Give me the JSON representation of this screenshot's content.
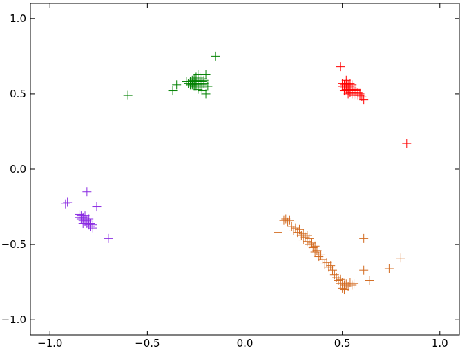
{
  "chart_data": {
    "type": "scatter",
    "title": "",
    "xlabel": "",
    "ylabel": "",
    "xlim": [
      -1.1,
      1.1
    ],
    "ylim": [
      -1.1,
      1.1
    ],
    "grid": false,
    "marker": "plus",
    "x_ticks": [
      -1.0,
      -0.5,
      0.0,
      0.5,
      1.0
    ],
    "x_tick_labels": [
      "−1.0",
      "−0.5",
      "0.0",
      "0.5",
      "1.0"
    ],
    "y_ticks": [
      1.0,
      0.5,
      0.0,
      -0.5,
      -1.0
    ],
    "y_tick_labels": [
      "1.0",
      "0.5",
      "0.0",
      "−0.5",
      "−1.0"
    ],
    "series": [
      {
        "color": "#008000",
        "points": [
          [
            -0.6,
            0.49
          ],
          [
            -0.15,
            0.75
          ],
          [
            -0.37,
            0.52
          ],
          [
            -0.35,
            0.56
          ],
          [
            -0.2,
            0.63
          ],
          [
            -0.2,
            0.5
          ],
          [
            -0.24,
            0.63
          ],
          [
            -0.22,
            0.52
          ],
          [
            -0.24,
            0.53
          ],
          [
            -0.19,
            0.55
          ],
          [
            -0.3,
            0.58
          ],
          [
            -0.29,
            0.57
          ],
          [
            -0.28,
            0.58
          ],
          [
            -0.27,
            0.57
          ],
          [
            -0.27,
            0.59
          ],
          [
            -0.26,
            0.56
          ],
          [
            -0.26,
            0.58
          ],
          [
            -0.26,
            0.6
          ],
          [
            -0.25,
            0.57
          ],
          [
            -0.25,
            0.59
          ],
          [
            -0.25,
            0.55
          ],
          [
            -0.24,
            0.58
          ],
          [
            -0.24,
            0.56
          ],
          [
            -0.24,
            0.6
          ],
          [
            -0.23,
            0.57
          ],
          [
            -0.23,
            0.59
          ],
          [
            -0.23,
            0.55
          ],
          [
            -0.22,
            0.58
          ],
          [
            -0.22,
            0.56
          ],
          [
            -0.22,
            0.6
          ],
          [
            -0.21,
            0.57
          ],
          [
            -0.21,
            0.59
          ],
          [
            -0.25,
            0.61
          ],
          [
            -0.27,
            0.56
          ],
          [
            -0.23,
            0.61
          ],
          [
            -0.28,
            0.56
          ],
          [
            -0.26,
            0.55
          ],
          [
            -0.24,
            0.54
          ],
          [
            -0.22,
            0.54
          ],
          [
            -0.25,
            0.58
          ]
        ]
      },
      {
        "color": "#ff0000",
        "points": [
          [
            0.49,
            0.68
          ],
          [
            0.83,
            0.17
          ],
          [
            0.5,
            0.55
          ],
          [
            0.51,
            0.54
          ],
          [
            0.51,
            0.56
          ],
          [
            0.52,
            0.55
          ],
          [
            0.52,
            0.57
          ],
          [
            0.52,
            0.53
          ],
          [
            0.53,
            0.54
          ],
          [
            0.53,
            0.56
          ],
          [
            0.53,
            0.52
          ],
          [
            0.54,
            0.55
          ],
          [
            0.54,
            0.53
          ],
          [
            0.54,
            0.51
          ],
          [
            0.55,
            0.54
          ],
          [
            0.55,
            0.52
          ],
          [
            0.55,
            0.5
          ],
          [
            0.56,
            0.53
          ],
          [
            0.56,
            0.51
          ],
          [
            0.57,
            0.52
          ],
          [
            0.57,
            0.5
          ],
          [
            0.58,
            0.51
          ],
          [
            0.58,
            0.49
          ],
          [
            0.59,
            0.49
          ],
          [
            0.6,
            0.48
          ],
          [
            0.61,
            0.46
          ],
          [
            0.52,
            0.59
          ],
          [
            0.54,
            0.57
          ],
          [
            0.55,
            0.56
          ],
          [
            0.57,
            0.53
          ],
          [
            0.59,
            0.5
          ],
          [
            0.5,
            0.57
          ],
          [
            0.53,
            0.5
          ],
          [
            0.56,
            0.49
          ],
          [
            0.51,
            0.52
          ]
        ]
      },
      {
        "color": "#8a2be2",
        "points": [
          [
            -0.91,
            -0.22
          ],
          [
            -0.92,
            -0.23
          ],
          [
            -0.81,
            -0.15
          ],
          [
            -0.76,
            -0.25
          ],
          [
            -0.7,
            -0.46
          ],
          [
            -0.78,
            -0.39
          ],
          [
            -0.85,
            -0.3
          ],
          [
            -0.84,
            -0.31
          ],
          [
            -0.84,
            -0.33
          ],
          [
            -0.83,
            -0.32
          ],
          [
            -0.83,
            -0.34
          ],
          [
            -0.82,
            -0.33
          ],
          [
            -0.82,
            -0.35
          ],
          [
            -0.82,
            -0.31
          ],
          [
            -0.81,
            -0.34
          ],
          [
            -0.81,
            -0.36
          ],
          [
            -0.8,
            -0.35
          ],
          [
            -0.8,
            -0.37
          ],
          [
            -0.79,
            -0.36
          ],
          [
            -0.79,
            -0.38
          ],
          [
            -0.83,
            -0.36
          ],
          [
            -0.85,
            -0.32
          ],
          [
            -0.78,
            -0.37
          ],
          [
            -0.8,
            -0.33
          ]
        ]
      },
      {
        "color": "#d2691e",
        "points": [
          [
            0.17,
            -0.42
          ],
          [
            0.21,
            -0.33
          ],
          [
            0.22,
            -0.35
          ],
          [
            0.23,
            -0.34
          ],
          [
            0.24,
            -0.38
          ],
          [
            0.25,
            -0.41
          ],
          [
            0.26,
            -0.39
          ],
          [
            0.27,
            -0.42
          ],
          [
            0.28,
            -0.4
          ],
          [
            0.29,
            -0.44
          ],
          [
            0.3,
            -0.43
          ],
          [
            0.3,
            -0.47
          ],
          [
            0.31,
            -0.45
          ],
          [
            0.32,
            -0.48
          ],
          [
            0.33,
            -0.46
          ],
          [
            0.33,
            -0.5
          ],
          [
            0.34,
            -0.49
          ],
          [
            0.35,
            -0.52
          ],
          [
            0.36,
            -0.55
          ],
          [
            0.37,
            -0.54
          ],
          [
            0.38,
            -0.58
          ],
          [
            0.39,
            -0.57
          ],
          [
            0.4,
            -0.6
          ],
          [
            0.41,
            -0.63
          ],
          [
            0.42,
            -0.62
          ],
          [
            0.43,
            -0.65
          ],
          [
            0.44,
            -0.64
          ],
          [
            0.45,
            -0.67
          ],
          [
            0.46,
            -0.7
          ],
          [
            0.47,
            -0.72
          ],
          [
            0.48,
            -0.74
          ],
          [
            0.49,
            -0.76
          ],
          [
            0.5,
            -0.75
          ],
          [
            0.51,
            -0.77
          ],
          [
            0.5,
            -0.79
          ],
          [
            0.52,
            -0.76
          ],
          [
            0.53,
            -0.78
          ],
          [
            0.54,
            -0.75
          ],
          [
            0.55,
            -0.77
          ],
          [
            0.51,
            -0.8
          ],
          [
            0.61,
            -0.46
          ],
          [
            0.61,
            -0.67
          ],
          [
            0.64,
            -0.74
          ],
          [
            0.74,
            -0.66
          ],
          [
            0.8,
            -0.59
          ],
          [
            0.49,
            -0.73
          ],
          [
            0.56,
            -0.76
          ],
          [
            0.2,
            -0.34
          ],
          [
            0.32,
            -0.44
          ],
          [
            0.36,
            -0.51
          ]
        ]
      }
    ]
  }
}
